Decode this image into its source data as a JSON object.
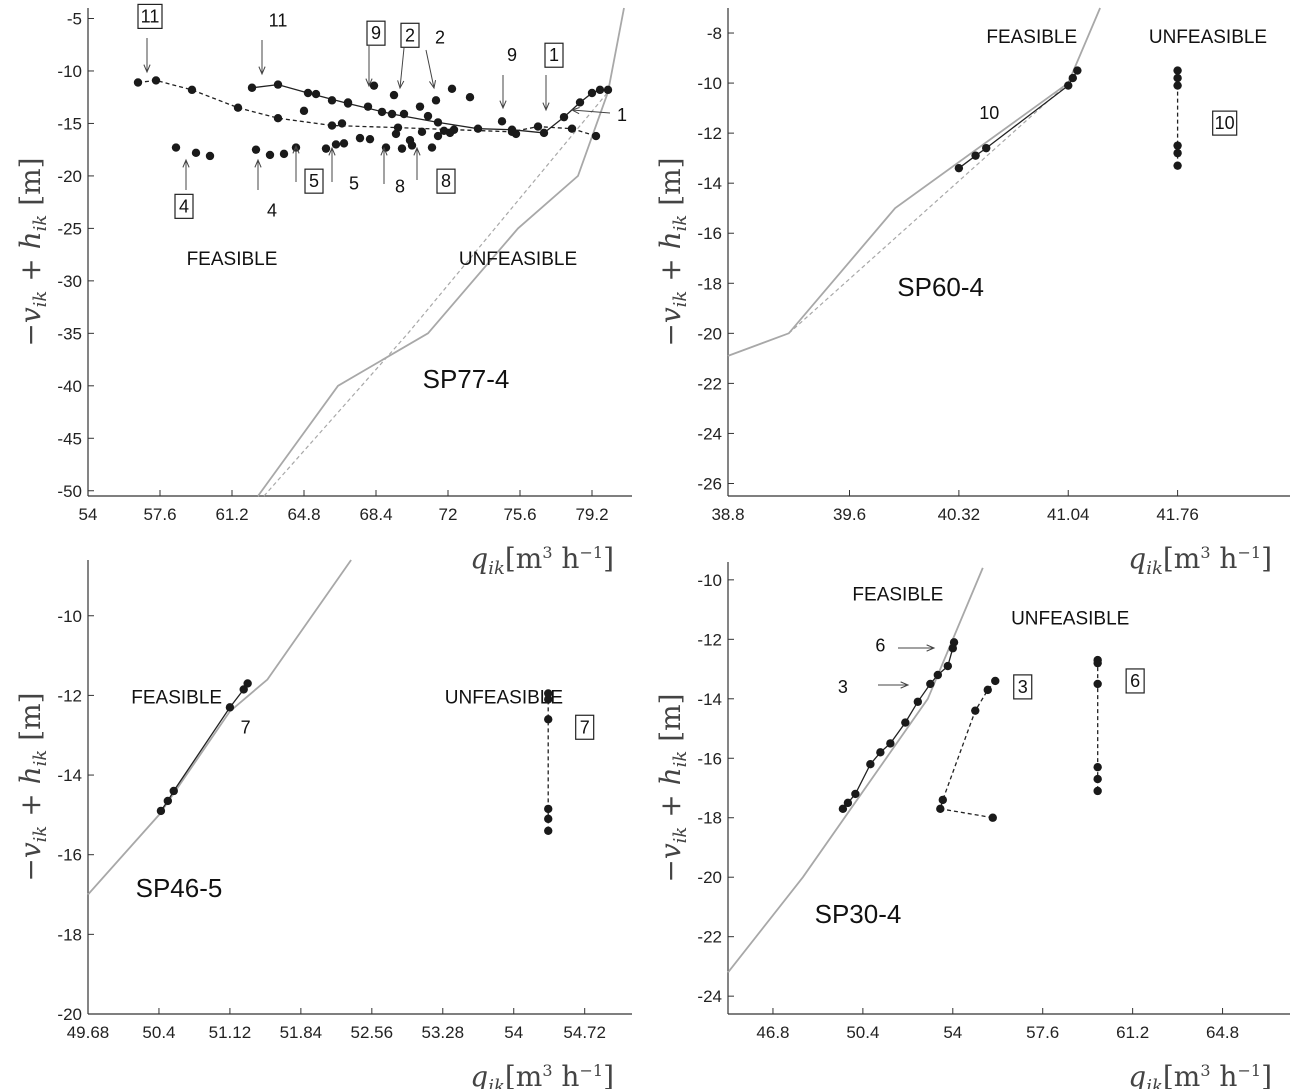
{
  "chart_data": [
    {
      "type": "scatter",
      "title": "SP77-4",
      "xlabel": "q_ik[m^3 h^-1]",
      "ylabel": "-v_ik + h_ik [m]",
      "xlim": [
        54,
        81.2
      ],
      "ylim": [
        -50.5,
        -4
      ],
      "xticks": [
        "54",
        "57.6",
        "61.2",
        "64.8",
        "68.4",
        "72",
        "75.6",
        "79.2"
      ],
      "yticks": [
        "-5",
        "-10",
        "-15",
        "-20",
        "-25",
        "-30",
        "-35",
        "-40",
        "-45",
        "-50"
      ],
      "regions": [
        {
          "label": "FEASIBLE",
          "x": 61.2,
          "y": -28.5
        },
        {
          "label": "UNFEASIBLE",
          "x": 75.5,
          "y": -28.5
        }
      ],
      "boundary": {
        "x": [
          62.5,
          66.5,
          71,
          75.5,
          78.5,
          80,
          80.8
        ],
        "y": [
          -50.5,
          -40,
          -35,
          -25,
          -20,
          -12,
          -4
        ]
      },
      "boundary_dashed": {
        "x": [
          62.8,
          70,
          80
        ],
        "y": [
          -50.5,
          -35,
          -12
        ]
      },
      "series": [
        {
          "style": "dashed",
          "x": [
            56.5,
            57.4,
            59.2,
            61.5,
            63.5,
            66.2,
            69.5,
            72.3,
            75.2,
            76.5,
            78.2,
            79.4
          ],
          "y": [
            -11.1,
            -10.9,
            -11.8,
            -13.5,
            -14.5,
            -15.2,
            -15.4,
            -15.6,
            -15.8,
            -15.3,
            -15.5,
            -16.2
          ]
        },
        {
          "style": "solid",
          "x": [
            62.2,
            63.5,
            65,
            67,
            69.2,
            71.5,
            73.5,
            75.2,
            76.8,
            77.8,
            78.6,
            79.2,
            79.6,
            80
          ],
          "y": [
            -11.6,
            -11.3,
            -12.1,
            -13.1,
            -14.1,
            -14.9,
            -15.5,
            -15.6,
            -15.9,
            -14.4,
            -13,
            -12.1,
            -11.8,
            -11.8
          ]
        }
      ],
      "points": [
        {
          "x": [
            58.4,
            59.4,
            60.1
          ],
          "y": [
            -17.3,
            -17.8,
            -18.1
          ]
        },
        {
          "x": [
            62.4,
            63.1,
            63.8,
            64.4,
            64.8,
            65.4,
            66.2,
            66.7,
            67.0,
            67.6,
            68.0,
            68.3,
            68.7,
            69.3,
            69.8,
            70.1,
            70.6,
            71.0,
            71.4,
            71.8,
            72.2
          ],
          "y": [
            -17.5,
            -18.0,
            -17.9,
            -17.3,
            -13.8,
            -12.2,
            -12.8,
            -15.0,
            -13.0,
            -16.4,
            -13.4,
            -11.4,
            -13.9,
            -12.3,
            -14.1,
            -16.6,
            -13.4,
            -14.3,
            -12.8,
            -15.7,
            -11.7
          ]
        },
        {
          "x": [
            65.9,
            66.4,
            66.8,
            68.1,
            68.9,
            69.4,
            69.7,
            70.2,
            70.7,
            71.2,
            71.5,
            72.1,
            73.1,
            74.7,
            75.4
          ],
          "y": [
            -17.4,
            -17.0,
            -16.9,
            -16.5,
            -17.3,
            -16.0,
            -17.4,
            -17.1,
            -15.8,
            -17.3,
            -16.2,
            -15.9,
            -12.5,
            -14.8,
            -16.0
          ]
        }
      ],
      "annotations": [
        {
          "text": "11",
          "boxed": true,
          "x": 57.1,
          "y": -4.8
        },
        {
          "text": "11",
          "boxed": false,
          "x": 63.5,
          "y": -5.2
        },
        {
          "text": "9",
          "boxed": true,
          "x": 68.4,
          "y": -6.4
        },
        {
          "text": "2",
          "boxed": true,
          "x": 70.1,
          "y": -6.6
        },
        {
          "text": "2",
          "boxed": false,
          "x": 71.6,
          "y": -6.8
        },
        {
          "text": "9",
          "boxed": false,
          "x": 75.2,
          "y": -8.5
        },
        {
          "text": "1",
          "boxed": true,
          "x": 77.3,
          "y": -8.5
        },
        {
          "text": "1",
          "boxed": false,
          "x": 80.7,
          "y": -14.2
        },
        {
          "text": "4",
          "boxed": true,
          "x": 58.8,
          "y": -22.9
        },
        {
          "text": "4",
          "boxed": false,
          "x": 63.2,
          "y": -23.3
        },
        {
          "text": "5",
          "boxed": true,
          "x": 65.3,
          "y": -20.5
        },
        {
          "text": "5",
          "boxed": false,
          "x": 67.3,
          "y": -20.7
        },
        {
          "text": "8",
          "boxed": false,
          "x": 69.6,
          "y": -21.0
        },
        {
          "text": "8",
          "boxed": true,
          "x": 71.9,
          "y": -20.5
        }
      ]
    },
    {
      "type": "scatter",
      "title": "SP60-4",
      "xlabel": "q_ik[m^3 h^-1]",
      "ylabel": "-v_ik + h_ik [m]",
      "xlim": [
        38.8,
        42.5
      ],
      "ylim": [
        -26.5,
        -7
      ],
      "xticks": [
        "38.8",
        "39.6",
        "40.32",
        "41.04",
        "41.76"
      ],
      "yticks": [
        "-8",
        "-10",
        "-12",
        "-14",
        "-16",
        "-18",
        "-20",
        "-22",
        "-24",
        "-26"
      ],
      "regions": [
        {
          "label": "FEASIBLE",
          "x": 40.8,
          "y": -8.4
        },
        {
          "label": "UNFEASIBLE",
          "x": 41.96,
          "y": -8.4
        }
      ],
      "boundary": {
        "x": [
          38.8,
          39.2,
          39.9,
          41.04,
          41.25
        ],
        "y": [
          -20.9,
          -20.0,
          -15.0,
          -10.0,
          -7.0
        ]
      },
      "boundary_dashed": {
        "x": [
          39.2,
          41.04
        ],
        "y": [
          -20.0,
          -10.0
        ]
      },
      "series": [
        {
          "style": "solid",
          "x": [
            40.32,
            40.43,
            40.5,
            41.04,
            41.07,
            41.1
          ],
          "y": [
            -13.4,
            -12.9,
            -12.6,
            -10.1,
            -9.8,
            -9.5
          ]
        },
        {
          "style": "dashed",
          "x": [
            41.76,
            41.76,
            41.76,
            41.76,
            41.76,
            41.76
          ],
          "y": [
            -9.5,
            -9.8,
            -10.1,
            -12.5,
            -12.8,
            -13.3
          ]
        }
      ],
      "annotations": [
        {
          "text": "10",
          "boxed": false,
          "x": 40.52,
          "y": -11.2
        },
        {
          "text": "10",
          "boxed": true,
          "x": 42.07,
          "y": -11.6
        },
        {
          "text": "SP60-4",
          "boxed": false,
          "x": 40.2,
          "y": -18.5
        }
      ]
    },
    {
      "type": "scatter",
      "title": "SP46-5",
      "xlabel": "q_ik[m^3 h^-1]",
      "ylabel": "-v_ik + h_ik [m]",
      "xlim": [
        49.68,
        55.2
      ],
      "ylim": [
        -20,
        -8.6
      ],
      "xticks": [
        "49.68",
        "50.4",
        "51.12",
        "51.84",
        "52.56",
        "53.28",
        "54",
        "54.72"
      ],
      "yticks": [
        "-10",
        "-12",
        "-14",
        "-16",
        "-18",
        "-20"
      ],
      "regions": [
        {
          "label": "FEASIBLE",
          "x": 50.58,
          "y": -12.2
        },
        {
          "label": "UNFEASIBLE",
          "x": 53.9,
          "y": -12.2
        }
      ],
      "boundary": {
        "x": [
          49.68,
          50.4,
          51.12,
          51.5,
          52.35
        ],
        "y": [
          -17.0,
          -15.0,
          -12.4,
          -11.6,
          -8.6
        ]
      },
      "series": [
        {
          "style": "solid",
          "x": [
            50.42,
            50.49,
            50.55,
            51.12,
            51.26,
            51.3
          ],
          "y": [
            -14.9,
            -14.65,
            -14.4,
            -12.3,
            -11.85,
            -11.7
          ]
        },
        {
          "style": "dashed",
          "x": [
            54.35,
            54.35,
            54.35,
            54.35,
            54.35,
            54.35
          ],
          "y": [
            -11.95,
            -12.1,
            -12.6,
            -14.85,
            -15.1,
            -15.4
          ]
        }
      ],
      "annotations": [
        {
          "text": "7",
          "boxed": false,
          "x": 51.28,
          "y": -12.8
        },
        {
          "text": "7",
          "boxed": true,
          "x": 54.72,
          "y": -12.8
        }
      ]
    },
    {
      "type": "scatter",
      "title": "SP30-4",
      "xlabel": "q_ik[m^3 h^-1]",
      "ylabel": "-v_ik + h_ik [m]",
      "xlim": [
        45,
        67.5
      ],
      "ylim": [
        -24.6,
        -9.4
      ],
      "xticks": [
        "46.8",
        "50.4",
        "54",
        "57.6",
        "61.2",
        "64.8"
      ],
      "yticks": [
        "-10",
        "-12",
        "-14",
        "-16",
        "-18",
        "-20",
        "-22",
        "-24"
      ],
      "regions": [
        {
          "label": "FEASIBLE",
          "x": 51.8,
          "y": -10.7
        },
        {
          "label": "UNFEASIBLE",
          "x": 58.7,
          "y": -11.5
        }
      ],
      "boundary": {
        "x": [
          45,
          48,
          53,
          55.2
        ],
        "y": [
          -23.2,
          -20.0,
          -14.0,
          -9.6
        ]
      },
      "series": [
        {
          "style": "solid",
          "x": [
            49.6,
            49.8,
            50.1,
            50.7,
            51.1,
            51.5,
            52.1,
            52.6,
            53.1,
            53.4,
            53.8,
            54.0,
            54.05
          ],
          "y": [
            -17.7,
            -17.5,
            -17.2,
            -16.2,
            -15.8,
            -15.5,
            -14.8,
            -14.1,
            -13.5,
            -13.2,
            -12.9,
            -12.3,
            -12.1
          ]
        },
        {
          "style": "dashed",
          "x": [
            55.7,
            55.4,
            54.9,
            53.6,
            53.5,
            55.6
          ],
          "y": [
            -13.4,
            -13.7,
            -14.4,
            -17.4,
            -17.7,
            -18.0
          ]
        },
        {
          "style": "dashed",
          "x": [
            59.8,
            59.8,
            59.8,
            59.8,
            59.8,
            59.8
          ],
          "y": [
            -12.7,
            -12.8,
            -13.5,
            -16.3,
            -16.7,
            -17.1
          ]
        }
      ],
      "annotations": [
        {
          "text": "6",
          "boxed": false,
          "x": 51.1,
          "y": -12.2
        },
        {
          "text": "3",
          "boxed": false,
          "x": 49.6,
          "y": -13.6
        },
        {
          "text": "3",
          "boxed": true,
          "x": 56.8,
          "y": -13.6
        },
        {
          "text": "6",
          "boxed": true,
          "x": 61.3,
          "y": -13.4
        }
      ]
    }
  ]
}
